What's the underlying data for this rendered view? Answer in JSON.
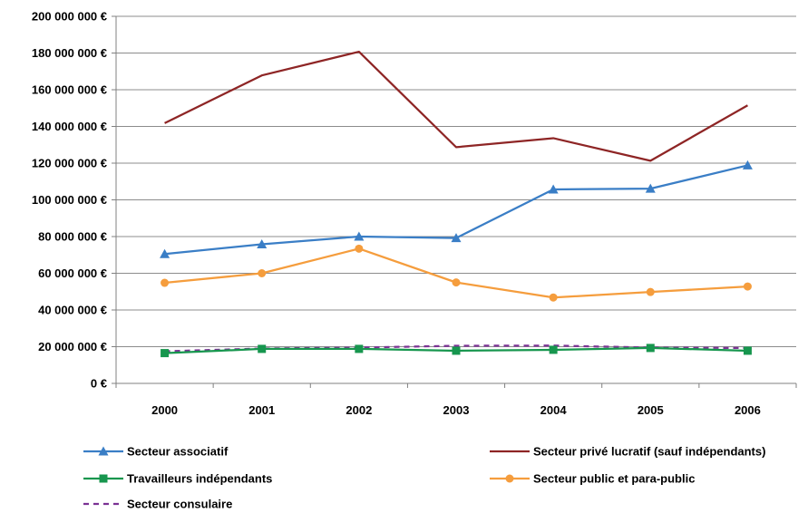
{
  "chart_data": {
    "type": "line",
    "title": "",
    "xlabel": "",
    "ylabel": "",
    "categories": [
      "2000",
      "2001",
      "2002",
      "2003",
      "2004",
      "2005",
      "2006"
    ],
    "ylim": [
      0,
      200000000
    ],
    "y_ticks": [
      {
        "value": 0,
        "label": "0 €"
      },
      {
        "value": 20000000,
        "label": "20 000 000 €"
      },
      {
        "value": 40000000,
        "label": "40 000 000 €"
      },
      {
        "value": 60000000,
        "label": "60 000 000 €"
      },
      {
        "value": 80000000,
        "label": "80 000 000 €"
      },
      {
        "value": 100000000,
        "label": "100 000 000 €"
      },
      {
        "value": 120000000,
        "label": "120 000 000 €"
      },
      {
        "value": 140000000,
        "label": "140 000 000 €"
      },
      {
        "value": 160000000,
        "label": "160 000 000 €"
      },
      {
        "value": 180000000,
        "label": "180 000 000 €"
      },
      {
        "value": 200000000,
        "label": "200 000 000 €"
      }
    ],
    "grid": "horizontal",
    "legend_position": "bottom",
    "series": [
      {
        "name": "Secteur associatif",
        "color": "#3A7EC6",
        "marker": "triangle",
        "dash": "solid",
        "values": [
          70500000,
          75800000,
          80000000,
          79200000,
          105700000,
          106100000,
          118800000
        ]
      },
      {
        "name": "Secteur privé lucratif (sauf indépendants)",
        "color": "#8E2525",
        "marker": "none",
        "dash": "solid",
        "values": [
          141800000,
          167800000,
          180700000,
          128700000,
          133600000,
          121300000,
          151500000
        ]
      },
      {
        "name": "Travailleurs indépendants",
        "color": "#17964E",
        "marker": "square",
        "dash": "solid",
        "values": [
          16500000,
          18800000,
          18800000,
          17800000,
          18300000,
          19300000,
          17800000
        ]
      },
      {
        "name": "Secteur public et para-public",
        "color": "#F59D3D",
        "marker": "circle",
        "dash": "solid",
        "values": [
          54800000,
          60000000,
          73400000,
          55000000,
          46800000,
          49800000,
          52800000
        ]
      },
      {
        "name": "Secteur consulaire",
        "color": "#7B3294",
        "marker": "none",
        "dash": "dashed",
        "values": [
          17500000,
          19000000,
          19500000,
          20500000,
          20600000,
          19500000,
          19300000
        ]
      }
    ]
  }
}
